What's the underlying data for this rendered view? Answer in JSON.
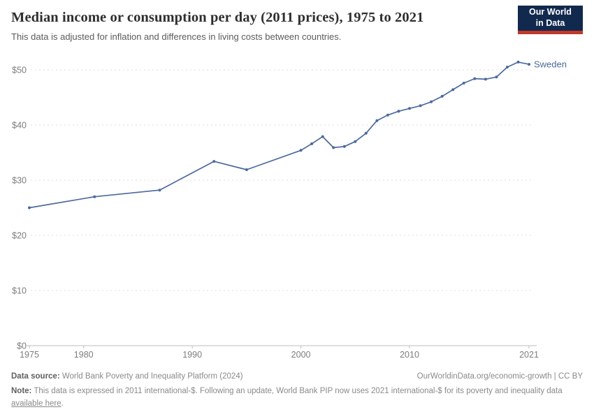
{
  "header": {
    "title": "Median income or consumption per day (2011 prices), 1975 to 2021",
    "subtitle": "This data is adjusted for inflation and differences in living costs between countries.",
    "logo": {
      "line1": "Our World",
      "line2": "in Data"
    }
  },
  "chart_data": {
    "type": "line",
    "title": "Median income or consumption per day (2011 prices), 1975 to 2021",
    "xlabel": "",
    "ylabel": "",
    "xlim": [
      1975,
      2021
    ],
    "ylim": [
      0,
      50
    ],
    "x_ticks": [
      1975,
      1980,
      1990,
      2000,
      2010,
      2021
    ],
    "y_ticks": [
      0,
      10,
      20,
      30,
      40,
      50
    ],
    "y_tick_prefix": "$",
    "grid": "horizontal-dashed",
    "legend_position": "end-of-line-label",
    "series": [
      {
        "name": "Sweden",
        "color": "#4c6a9c",
        "x": [
          1975,
          1981,
          1987,
          1992,
          1995,
          2000,
          2001,
          2002,
          2003,
          2004,
          2005,
          2006,
          2007,
          2008,
          2009,
          2010,
          2011,
          2012,
          2013,
          2014,
          2015,
          2016,
          2017,
          2018,
          2019,
          2020,
          2021
        ],
        "values": [
          25.0,
          27.0,
          28.2,
          33.4,
          31.9,
          35.4,
          36.6,
          37.9,
          35.9,
          36.1,
          37.0,
          38.5,
          40.8,
          41.8,
          42.5,
          43.0,
          43.5,
          44.2,
          45.2,
          46.4,
          47.6,
          48.4,
          48.3,
          48.7,
          50.5,
          51.4,
          51.0
        ]
      }
    ]
  },
  "footer": {
    "source_label": "Data source:",
    "source_text": "World Bank Poverty and Inequality Platform (2024)",
    "attribution": "OurWorldinData.org/economic-growth | CC BY",
    "note_label": "Note:",
    "note_text": "This data is expressed in 2011 international-$. Following an update, World Bank PIP now uses 2021 international-$ for its poverty and inequality data",
    "note_link": "available here",
    "note_suffix": "."
  },
  "colors": {
    "line": "#4c6a9c",
    "gridline": "#dcdcdc",
    "axis": "#bdbdbd",
    "tick_label": "#7d7d7d",
    "logo_bg": "#12294e",
    "logo_accent": "#c0392b"
  }
}
